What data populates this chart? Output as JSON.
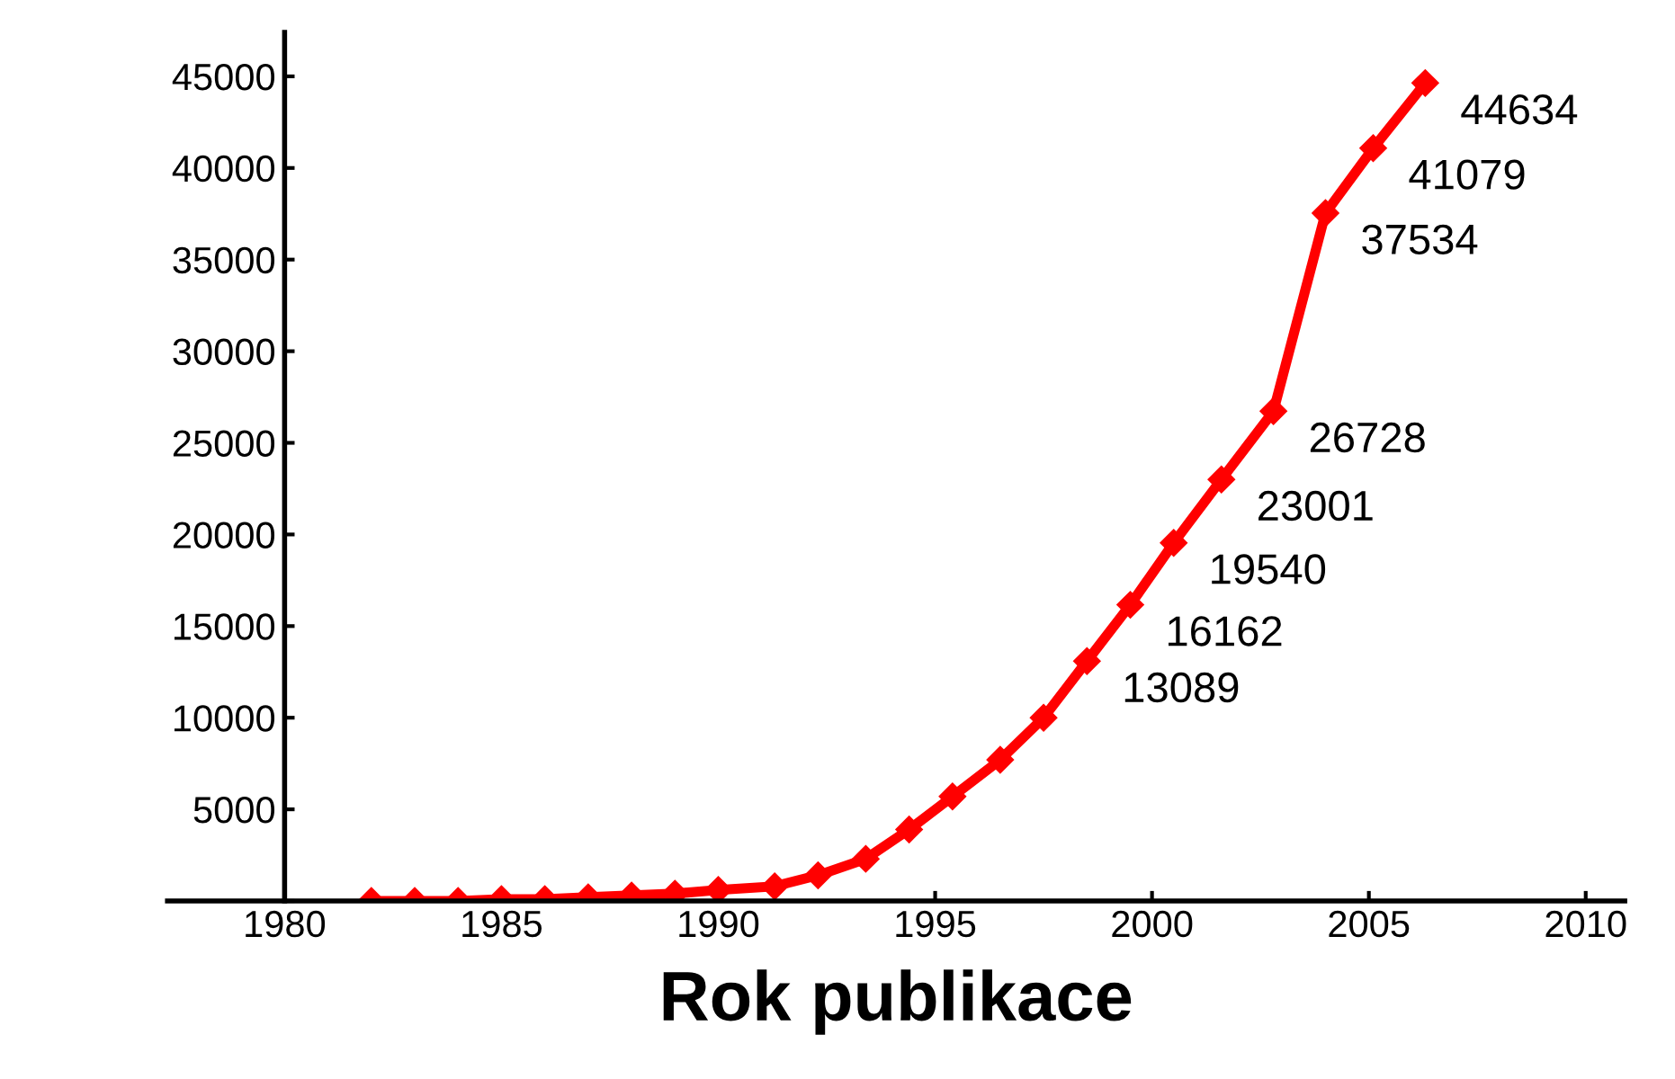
{
  "chart_data": {
    "type": "line",
    "xlabel": "Rok publikace",
    "x": [
      1982,
      1983,
      1984,
      1985,
      1986,
      1987,
      1988,
      1989,
      1990,
      1991.3,
      1992.3,
      1993.4,
      1994.4,
      1995.4,
      1996.5,
      1997.5,
      1998.5,
      1999.5,
      2000.5,
      2001.6,
      2002.8,
      2004.0,
      2005.1,
      2006.3
    ],
    "series": [
      {
        "color": "#ff0000",
        "values": [
          0,
          0,
          0,
          100,
          100,
          200,
          300,
          400,
          600,
          800,
          1400,
          2300,
          3900,
          5700,
          7700,
          10000,
          13089,
          16162,
          19540,
          23001,
          26728,
          37534,
          41079,
          44634
        ],
        "value_labels": [
          null,
          null,
          null,
          null,
          null,
          null,
          null,
          null,
          null,
          null,
          null,
          null,
          null,
          null,
          null,
          null,
          "13089",
          "16162",
          "19540",
          "23001",
          "26728",
          "37534",
          "41079",
          "44634"
        ]
      }
    ],
    "xlim": [
      1977.3,
      2010.9
    ],
    "ylim": [
      0,
      47400
    ],
    "xticks": [
      1980,
      1985,
      1990,
      1995,
      2000,
      2005,
      2010
    ],
    "yticks": [
      {
        "value": 0,
        "label": null
      },
      5000,
      10000,
      15000,
      20000,
      25000,
      30000,
      35000,
      40000,
      45000
    ],
    "grid": false,
    "legend": false,
    "marker": "diamond",
    "line_style": "solid"
  }
}
